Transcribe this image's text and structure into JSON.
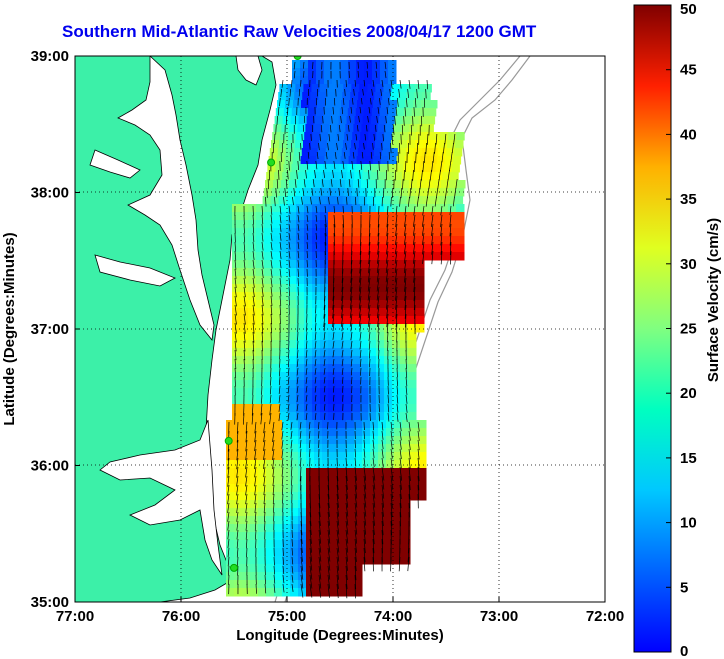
{
  "title": "Southern Mid-Atlantic Raw Velocities 2008/04/17 1200 GMT",
  "x_axis": {
    "label": "Longitude (Degrees:Minutes)",
    "ticks": [
      "77:00",
      "76:00",
      "75:00",
      "74:00",
      "73:00",
      "72:00"
    ]
  },
  "y_axis": {
    "label": "Latitude (Degrees:Minutes)",
    "ticks": [
      "39:00",
      "38:00",
      "37:00",
      "36:00",
      "35:00"
    ]
  },
  "colorbar": {
    "label": "Surface Velocity (cm/s)",
    "ticks": [
      "50",
      "45",
      "40",
      "35",
      "30",
      "25",
      "20",
      "15",
      "10",
      "5",
      "0"
    ],
    "min": 0,
    "max": 50,
    "colormap": "jet"
  },
  "colors": {
    "title": "#0000ee",
    "land": "#3cf0a8",
    "coastline": "#000000",
    "bathymetry": "#999999",
    "station_marker": "#22dd22"
  },
  "map": {
    "lon_range": [
      -77,
      -72
    ],
    "lat_range": [
      35,
      39
    ],
    "grid": "dotted"
  },
  "stations": [
    {
      "lon": -74.9,
      "lat": 39.0
    },
    {
      "lon": -75.15,
      "lat": 38.22
    },
    {
      "lon": -75.55,
      "lat": 36.18
    },
    {
      "lon": -75.5,
      "lat": 35.25
    }
  ]
}
